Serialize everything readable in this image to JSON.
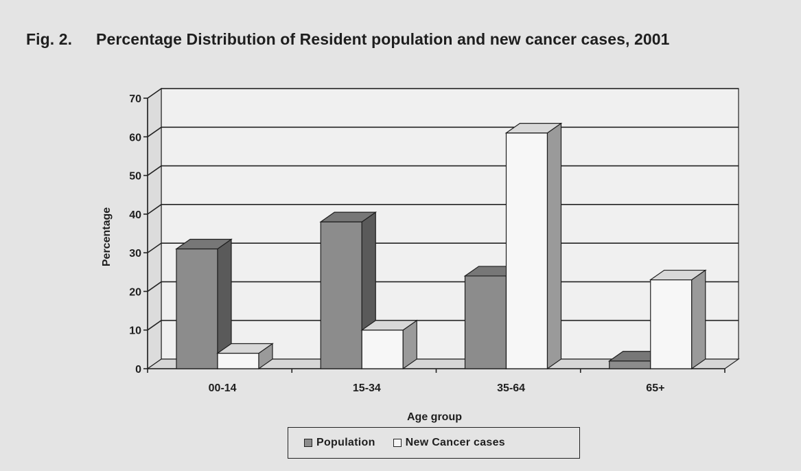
{
  "figure": {
    "label": "Fig. 2.",
    "title": "Percentage Distribution of Resident population and new cancer cases, 2001"
  },
  "chart_data": {
    "type": "bar",
    "style": "3d-clustered",
    "categories": [
      "00-14",
      "15-34",
      "35-64",
      "65+"
    ],
    "series": [
      {
        "name": "Population",
        "values": [
          31,
          38,
          24,
          2
        ],
        "color": "#8c8c8c",
        "side_color": "#5a5a5a",
        "top_color": "#777777"
      },
      {
        "name": "New Cancer cases",
        "values": [
          4,
          10,
          61,
          23
        ],
        "color": "#f7f7f7",
        "side_color": "#9a9a9a",
        "top_color": "#d8d8d8"
      }
    ],
    "xlabel": "Age group",
    "ylabel": "Percentage",
    "ylim": [
      0,
      70
    ],
    "yticks": [
      0,
      10,
      20,
      30,
      40,
      50,
      60,
      70
    ],
    "grid": true,
    "legend_position": "bottom"
  },
  "colors": {
    "background": "#e4e4e4",
    "plot_back_wall": "#f0f0f0",
    "gridline": "#222222",
    "text": "#1e1e1e"
  }
}
